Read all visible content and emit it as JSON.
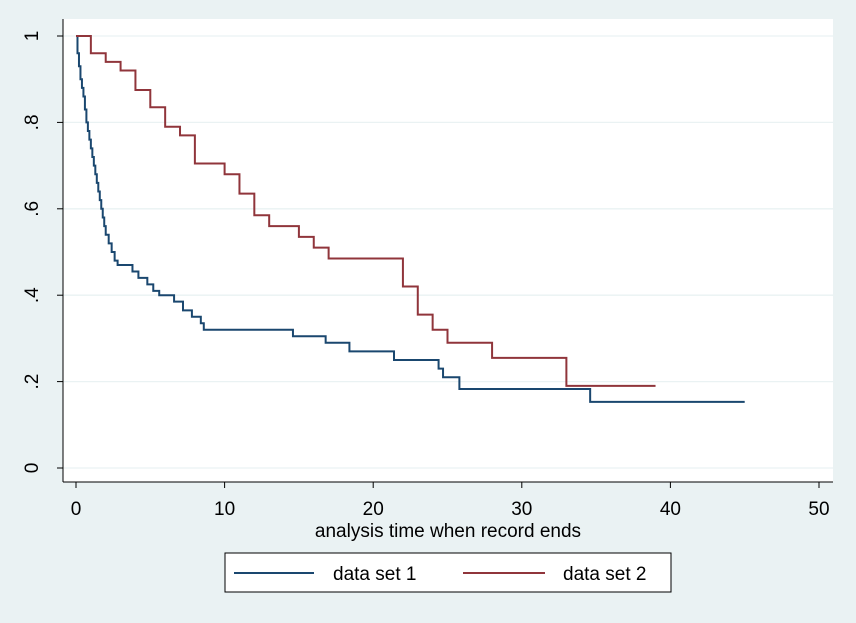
{
  "chart_data": {
    "type": "line",
    "xlabel": "analysis time when record ends",
    "ylabel": "",
    "xlim": [
      0,
      50
    ],
    "ylim": [
      0,
      1
    ],
    "x_ticks": [
      0,
      10,
      20,
      30,
      40,
      50
    ],
    "y_ticks": [
      0,
      0.2,
      0.4,
      0.6,
      0.8,
      1
    ],
    "x_tick_labels": [
      "0",
      "10",
      "20",
      "30",
      "40",
      "50"
    ],
    "y_tick_labels": [
      "0",
      ".2",
      ".4",
      ".6",
      ".8",
      "1"
    ],
    "grid": true,
    "legend_position": "bottom",
    "series": [
      {
        "name": "data set 1",
        "color": "#1a476f",
        "step": true,
        "points": [
          [
            0,
            1.0
          ],
          [
            0.1,
            0.96
          ],
          [
            0.2,
            0.93
          ],
          [
            0.3,
            0.9
          ],
          [
            0.4,
            0.88
          ],
          [
            0.5,
            0.86
          ],
          [
            0.6,
            0.83
          ],
          [
            0.7,
            0.8
          ],
          [
            0.8,
            0.78
          ],
          [
            0.9,
            0.76
          ],
          [
            1.0,
            0.74
          ],
          [
            1.1,
            0.72
          ],
          [
            1.2,
            0.7
          ],
          [
            1.3,
            0.68
          ],
          [
            1.4,
            0.66
          ],
          [
            1.5,
            0.64
          ],
          [
            1.6,
            0.62
          ],
          [
            1.7,
            0.6
          ],
          [
            1.8,
            0.58
          ],
          [
            1.9,
            0.56
          ],
          [
            2.0,
            0.54
          ],
          [
            2.2,
            0.52
          ],
          [
            2.4,
            0.5
          ],
          [
            2.6,
            0.48
          ],
          [
            2.8,
            0.47
          ],
          [
            3.8,
            0.455
          ],
          [
            4.2,
            0.44
          ],
          [
            4.8,
            0.425
          ],
          [
            5.2,
            0.41
          ],
          [
            5.6,
            0.4
          ],
          [
            6.6,
            0.385
          ],
          [
            7.2,
            0.365
          ],
          [
            7.8,
            0.35
          ],
          [
            8.4,
            0.335
          ],
          [
            8.6,
            0.32
          ],
          [
            14.6,
            0.305
          ],
          [
            16.8,
            0.29
          ],
          [
            18.4,
            0.27
          ],
          [
            21.4,
            0.25
          ],
          [
            24.4,
            0.23
          ],
          [
            24.7,
            0.21
          ],
          [
            25.8,
            0.183
          ],
          [
            34.6,
            0.153
          ],
          [
            45.0,
            0.153
          ]
        ]
      },
      {
        "name": "data set 2",
        "color": "#90353b",
        "step": true,
        "points": [
          [
            0,
            1.0
          ],
          [
            1.0,
            0.96
          ],
          [
            2.0,
            0.94
          ],
          [
            3.0,
            0.92
          ],
          [
            4.0,
            0.875
          ],
          [
            5.0,
            0.835
          ],
          [
            6.0,
            0.79
          ],
          [
            7.0,
            0.77
          ],
          [
            8.0,
            0.705
          ],
          [
            10.0,
            0.68
          ],
          [
            11.0,
            0.635
          ],
          [
            12.0,
            0.585
          ],
          [
            13.0,
            0.56
          ],
          [
            15.0,
            0.535
          ],
          [
            16.0,
            0.51
          ],
          [
            17.0,
            0.485
          ],
          [
            22.0,
            0.42
          ],
          [
            23.0,
            0.355
          ],
          [
            24.0,
            0.32
          ],
          [
            25.0,
            0.29
          ],
          [
            28.0,
            0.255
          ],
          [
            33.0,
            0.19
          ],
          [
            39.0,
            0.19
          ]
        ]
      }
    ]
  },
  "legend": {
    "items": [
      {
        "label": "data set 1",
        "color": "#1a476f"
      },
      {
        "label": "data set 2",
        "color": "#90353b"
      }
    ]
  },
  "colors": {
    "page_bg": "#eaf2f3",
    "plot_bg": "#ffffff",
    "grid": "#eaf2f3"
  }
}
